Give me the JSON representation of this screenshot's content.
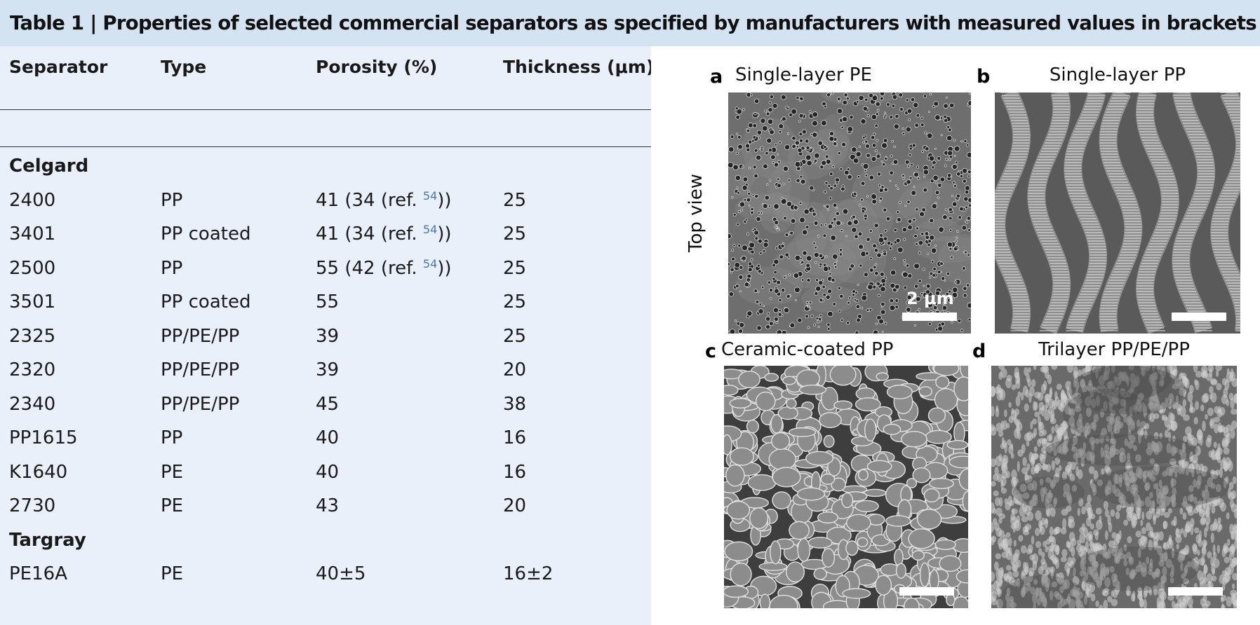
{
  "table": {
    "title": "Table 1 | Properties of selected commercial separators as specified by manufacturers with measured values in brackets",
    "headers": [
      "Separator",
      "Type",
      "Porosity (%)",
      "Thickness (μm)"
    ],
    "groups": [
      {
        "name": "Celgard",
        "rows": [
          {
            "separator": "2400",
            "type": "PP",
            "porosity": "41 (34 (ref.",
            "ref": "54",
            "porosity_tail": "))",
            "thickness": "25"
          },
          {
            "separator": "3401",
            "type": "PP coated",
            "porosity": "41 (34 (ref.",
            "ref": "54",
            "porosity_tail": "))",
            "thickness": "25"
          },
          {
            "separator": "2500",
            "type": "PP",
            "porosity": "55 (42 (ref.",
            "ref": "54",
            "porosity_tail": "))",
            "thickness": "25"
          },
          {
            "separator": "3501",
            "type": "PP coated",
            "porosity": "55",
            "ref": "",
            "porosity_tail": "",
            "thickness": "25"
          },
          {
            "separator": "2325",
            "type": "PP/PE/PP",
            "porosity": "39",
            "ref": "",
            "porosity_tail": "",
            "thickness": "25"
          },
          {
            "separator": "2320",
            "type": "PP/PE/PP",
            "porosity": "39",
            "ref": "",
            "porosity_tail": "",
            "thickness": "20"
          },
          {
            "separator": "2340",
            "type": "PP/PE/PP",
            "porosity": "45",
            "ref": "",
            "porosity_tail": "",
            "thickness": "38"
          },
          {
            "separator": "PP1615",
            "type": "PP",
            "porosity": "40",
            "ref": "",
            "porosity_tail": "",
            "thickness": "16"
          },
          {
            "separator": "K1640",
            "type": "PE",
            "porosity": "40",
            "ref": "",
            "porosity_tail": "",
            "thickness": "16"
          },
          {
            "separator": "2730",
            "type": "PE",
            "porosity": "43",
            "ref": "",
            "porosity_tail": "",
            "thickness": "20"
          }
        ]
      },
      {
        "name": "Targray",
        "rows": [
          {
            "separator": "PE16A",
            "type": "PE",
            "porosity": "40±5",
            "ref": "",
            "porosity_tail": "",
            "thickness": "16±2"
          }
        ]
      }
    ]
  },
  "figure": {
    "row_label": "Top view",
    "scale_label": "2 μm",
    "panels": [
      {
        "letter": "a",
        "title": "Single-layer PE",
        "texture": "pe"
      },
      {
        "letter": "b",
        "title": "Single-layer PP",
        "texture": "pp"
      },
      {
        "letter": "c",
        "title": "Ceramic-coated PP",
        "texture": "ceramic"
      },
      {
        "letter": "d",
        "title": "Trilayer PP/PE/PP",
        "texture": "trilayer"
      }
    ]
  },
  "colors": {
    "title_bg": "#d4e3f2",
    "table_bg": "#e9f0fa",
    "ref_link": "#4a78b0"
  }
}
